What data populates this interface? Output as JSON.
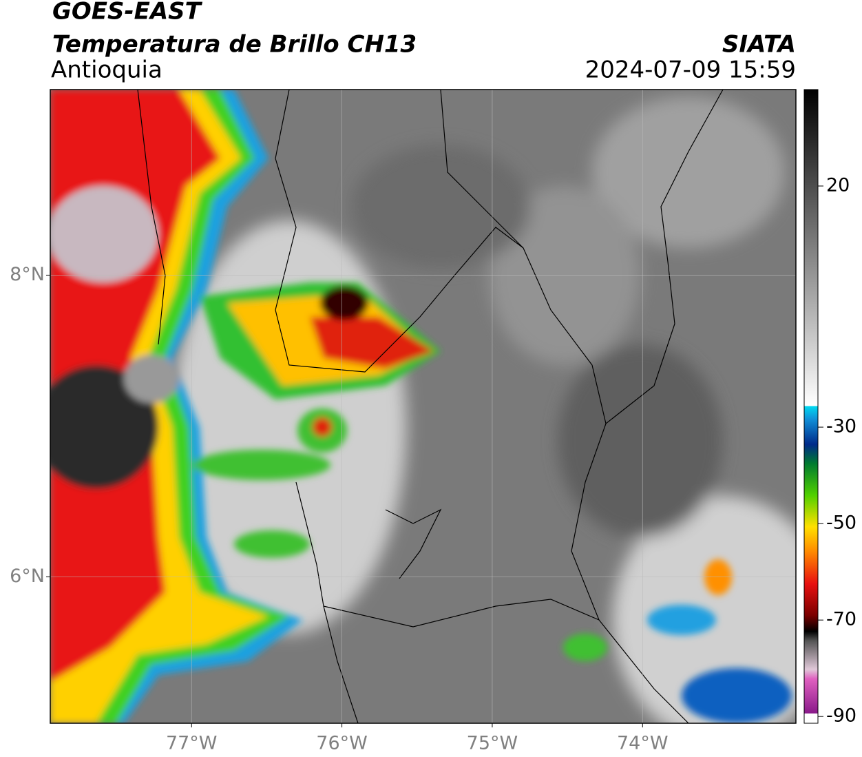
{
  "map": {
    "title": "GOES-EAST",
    "subtitle": "Temperatura de Brillo CH13",
    "region": "Antioquia",
    "source": "SIATA",
    "timestamp": "2024-07-09 15:59",
    "xlim": [
      -77.94,
      -72.98
    ],
    "ylim": [
      5.03,
      9.23
    ],
    "xticks": [
      {
        "value": -77,
        "label": "77°W"
      },
      {
        "value": -76,
        "label": "76°W"
      },
      {
        "value": -75,
        "label": "75°W"
      },
      {
        "value": -74,
        "label": "74°W"
      }
    ],
    "yticks": [
      {
        "value": 8,
        "label": "8°N"
      },
      {
        "value": 6,
        "label": "6°N"
      }
    ],
    "grid": true,
    "colorbar": {
      "lim": [
        -91.4,
        40
      ],
      "ticks": [
        20,
        -30,
        -50,
        -70,
        -90
      ]
    }
  }
}
